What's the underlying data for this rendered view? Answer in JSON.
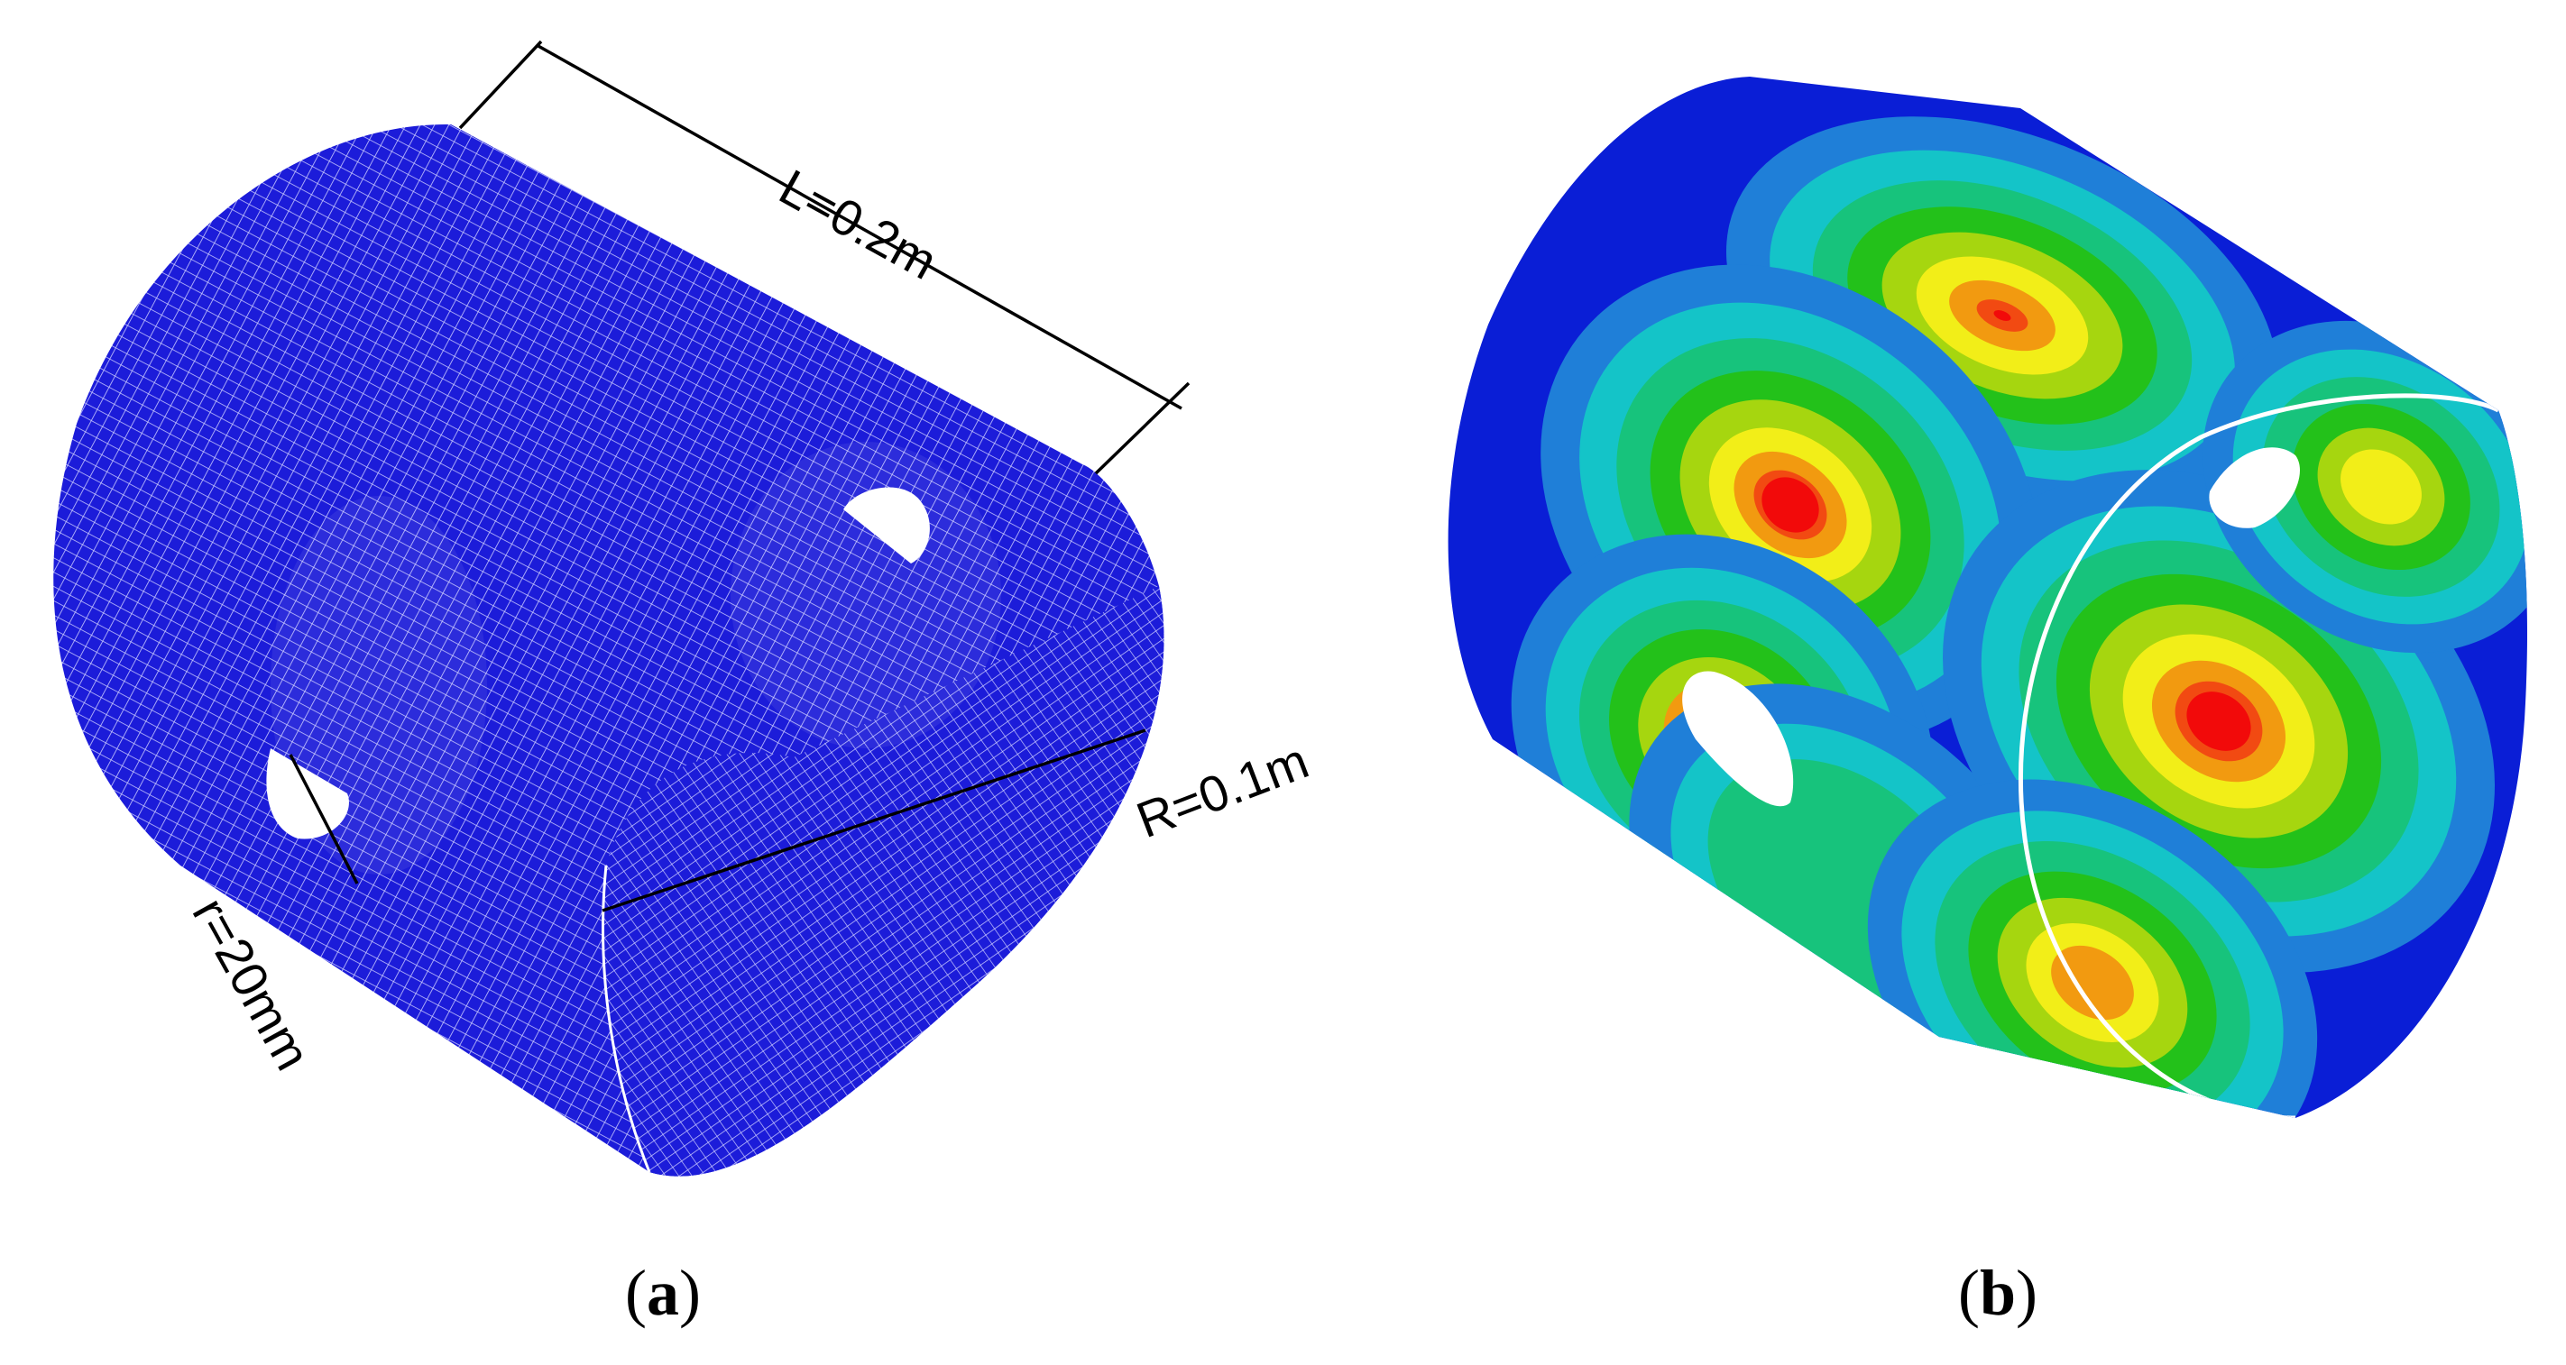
{
  "panel_a": {
    "caption_open": "(",
    "caption_letter": "a",
    "caption_close": ")",
    "dimension_length": "L=0.2m",
    "dimension_radius": "R=0.1m",
    "dimension_hole_radius": "r=20mm",
    "mesh_color": "#1c1cd9",
    "mesh_line_color": "#ffffff"
  },
  "panel_b": {
    "caption_open": "(",
    "caption_letter": "b",
    "caption_close": ")",
    "contour_colors": [
      "#0a1ed6",
      "#1f7fd8",
      "#14c4c8",
      "#17c37c",
      "#23c11a",
      "#a6d60f",
      "#f2ee18",
      "#f29a10",
      "#f24a12",
      "#f20a0a"
    ]
  }
}
